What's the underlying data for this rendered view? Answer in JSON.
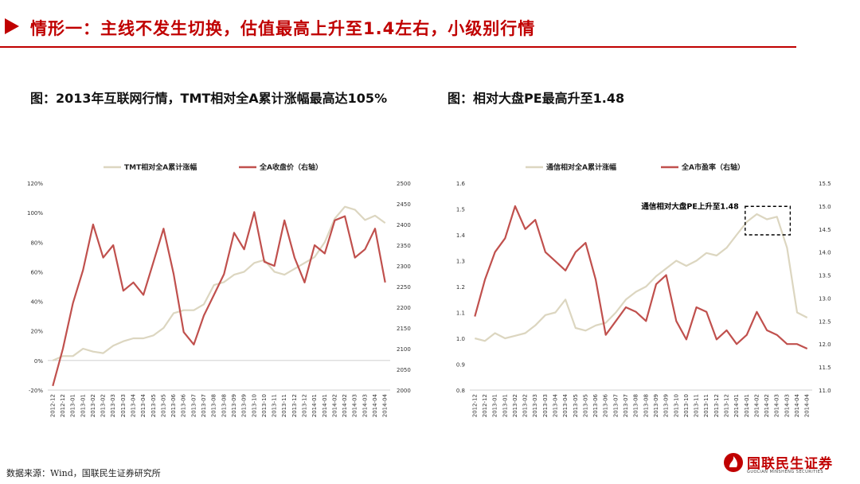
{
  "header": {
    "title": "情形一：主线不发生切换，估值最高上升至1.4左右，小级别行情"
  },
  "figures": [
    {
      "title": "图：2013年互联网行情，TMT相对全A累计涨幅最高达105%"
    },
    {
      "title": "图：相对大盘PE最高升至1.48"
    }
  ],
  "footer": {
    "source": "数据来源：Wind，国联民生证券研究所",
    "logo_cn": "国联民生证券",
    "logo_en": "GUOLIAN MINSHENG SECURITIES"
  },
  "colors": {
    "accent": "#c00000",
    "series_light": "#dcd6c0",
    "series_red": "#c0504d"
  },
  "chart_data": [
    {
      "type": "line",
      "x": [
        "2012-12",
        "2012-12",
        "2013-01",
        "2013-01",
        "2013-02",
        "2013-02",
        "2013-03",
        "2013-03",
        "2013-04",
        "2013-04",
        "2013-05",
        "2013-05",
        "2013-06",
        "2013-06",
        "2013-07",
        "2013-07",
        "2013-08",
        "2013-08",
        "2013-09",
        "2013-09",
        "2013-10",
        "2013-10",
        "2013-11",
        "2013-11",
        "2013-12",
        "2013-12",
        "2014-01",
        "2014-01",
        "2014-02",
        "2014-02",
        "2014-03",
        "2014-03",
        "2014-04",
        "2014-04"
      ],
      "y_left_ticks": [
        "-20%",
        "0%",
        "20%",
        "40%",
        "60%",
        "80%",
        "100%",
        "120%"
      ],
      "y_left_range": [
        -20,
        120
      ],
      "y_right_ticks": [
        "2000",
        "2050",
        "2100",
        "2150",
        "2200",
        "2250",
        "2300",
        "2350",
        "2400",
        "2450",
        "2500"
      ],
      "y_right_range": [
        2000,
        2500
      ],
      "legend_position": "top",
      "series": [
        {
          "name": "TMT相对全A累计涨幅",
          "axis": "left",
          "color": "#dcd6c0",
          "values": [
            0,
            3,
            3,
            8,
            6,
            5,
            10,
            13,
            15,
            15,
            17,
            22,
            32,
            34,
            34,
            38,
            51,
            53,
            58,
            60,
            66,
            68,
            60,
            58,
            62,
            66,
            70,
            80,
            96,
            104,
            102,
            95,
            98,
            93
          ]
        },
        {
          "name": "全A收盘价（右轴）",
          "axis": "right",
          "color": "#c0504d",
          "values": [
            2010,
            2100,
            2210,
            2290,
            2400,
            2320,
            2350,
            2240,
            2260,
            2230,
            2310,
            2390,
            2280,
            2140,
            2110,
            2180,
            2230,
            2280,
            2380,
            2340,
            2430,
            2310,
            2300,
            2410,
            2320,
            2260,
            2350,
            2330,
            2410,
            2420,
            2320,
            2340,
            2390,
            2260
          ]
        }
      ]
    },
    {
      "type": "line",
      "x": [
        "2012-12",
        "2012-12",
        "2013-01",
        "2013-01",
        "2013-02",
        "2013-02",
        "2013-03",
        "2013-03",
        "2013-04",
        "2013-04",
        "2013-05",
        "2013-05",
        "2013-06",
        "2013-06",
        "2013-07",
        "2013-07",
        "2013-08",
        "2013-08",
        "2013-09",
        "2013-09",
        "2013-10",
        "2013-10",
        "2013-11",
        "2013-11",
        "2013-12",
        "2013-12",
        "2014-01",
        "2014-01",
        "2014-02",
        "2014-02",
        "2014-03",
        "2014-03",
        "2014-04",
        "2014-04"
      ],
      "y_left_ticks": [
        "0.8",
        "0.9",
        "1.0",
        "1.1",
        "1.2",
        "1.3",
        "1.4",
        "1.5",
        "1.6"
      ],
      "y_left_range": [
        0.8,
        1.6
      ],
      "y_right_ticks": [
        "11.0",
        "11.5",
        "12.0",
        "12.5",
        "13.0",
        "13.5",
        "14.0",
        "14.5",
        "15.0",
        "15.5"
      ],
      "y_right_range": [
        11.0,
        15.5
      ],
      "legend_position": "top",
      "annotation": "通信相对大盘PE上升至1.48",
      "series": [
        {
          "name": "通信相对全A累计涨幅",
          "axis": "left",
          "color": "#dcd6c0",
          "values": [
            1.0,
            0.99,
            1.02,
            1.0,
            1.01,
            1.02,
            1.05,
            1.09,
            1.1,
            1.15,
            1.04,
            1.03,
            1.05,
            1.06,
            1.1,
            1.15,
            1.18,
            1.2,
            1.24,
            1.27,
            1.3,
            1.28,
            1.3,
            1.33,
            1.32,
            1.35,
            1.4,
            1.45,
            1.48,
            1.46,
            1.47,
            1.35,
            1.1,
            1.08
          ]
        },
        {
          "name": "全A市盈率（右轴）",
          "axis": "right",
          "color": "#c0504d",
          "values": [
            12.6,
            13.4,
            14.0,
            14.3,
            15.0,
            14.5,
            14.7,
            14.0,
            13.8,
            13.6,
            14.0,
            14.2,
            13.4,
            12.2,
            12.5,
            12.8,
            12.7,
            12.5,
            13.3,
            13.5,
            12.5,
            12.1,
            12.8,
            12.7,
            12.1,
            12.3,
            12.0,
            12.2,
            12.7,
            12.3,
            12.2,
            12.0,
            12.0,
            11.9
          ]
        }
      ]
    }
  ]
}
